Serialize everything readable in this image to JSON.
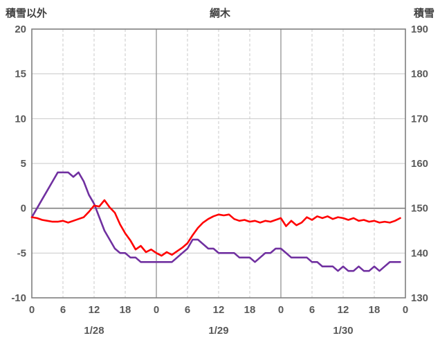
{
  "header": {
    "left_axis_title": "積雪以外",
    "title": "綱木",
    "right_axis_title": "積雪"
  },
  "chart_data": {
    "type": "line",
    "title": "綱木",
    "left_axis": {
      "title": "積雪以外",
      "min": -10,
      "max": 20,
      "ticks": [
        20,
        15,
        10,
        5,
        0,
        -5,
        -10
      ]
    },
    "right_axis": {
      "title": "積雪",
      "min": 130,
      "max": 190,
      "ticks": [
        190,
        180,
        170,
        160,
        150,
        140,
        130
      ]
    },
    "x_axis": {
      "hours_span": 72,
      "tick_hours": [
        0,
        6,
        12,
        18,
        24,
        30,
        36,
        42,
        48,
        54,
        60,
        66,
        72
      ],
      "tick_labels": [
        "0",
        "6",
        "12",
        "18",
        "0",
        "6",
        "12",
        "18",
        "0",
        "6",
        "12",
        "18",
        "0"
      ],
      "day_labels": [
        {
          "label": "1/28",
          "hour": 12
        },
        {
          "label": "1/29",
          "hour": 36
        },
        {
          "label": "1/30",
          "hour": 60
        }
      ],
      "day_boundary_hours": [
        24,
        48
      ]
    },
    "grid": true,
    "legend": "none",
    "x_hours": [
      0,
      1,
      2,
      3,
      4,
      5,
      6,
      7,
      8,
      9,
      10,
      11,
      12,
      13,
      14,
      15,
      16,
      17,
      18,
      19,
      20,
      21,
      22,
      23,
      24,
      25,
      26,
      27,
      28,
      29,
      30,
      31,
      32,
      33,
      34,
      35,
      36,
      37,
      38,
      39,
      40,
      41,
      42,
      43,
      44,
      45,
      46,
      47,
      48,
      49,
      50,
      51,
      52,
      53,
      54,
      55,
      56,
      57,
      58,
      59,
      60,
      61,
      62,
      63,
      64,
      65,
      66,
      67,
      68,
      69,
      70,
      71
    ],
    "series": [
      {
        "name": "積雪",
        "axis": "right",
        "color": "#7030A0",
        "values": [
          148,
          150,
          152,
          154,
          156,
          158,
          158,
          158,
          157,
          158,
          156,
          153,
          151,
          148,
          145,
          143,
          141,
          140,
          140,
          139,
          139,
          138,
          138,
          138,
          138,
          138,
          138,
          138,
          139,
          140,
          141,
          143,
          143,
          142,
          141,
          141,
          140,
          140,
          140,
          140,
          139,
          139,
          139,
          138,
          139,
          140,
          140,
          141,
          141,
          140,
          139,
          139,
          139,
          139,
          138,
          138,
          137,
          137,
          137,
          136,
          137,
          136,
          136,
          137,
          136,
          136,
          137,
          136,
          137,
          138,
          138,
          138
        ]
      },
      {
        "name": "積雪以外",
        "axis": "left",
        "color": "#FF0000",
        "values": [
          -1.0,
          -1.1,
          -1.3,
          -1.4,
          -1.5,
          -1.5,
          -1.4,
          -1.6,
          -1.4,
          -1.2,
          -1.0,
          -0.4,
          0.3,
          0.2,
          0.9,
          0.1,
          -0.5,
          -1.8,
          -2.8,
          -3.6,
          -4.6,
          -4.2,
          -4.9,
          -4.6,
          -5.0,
          -5.3,
          -4.9,
          -5.2,
          -4.8,
          -4.4,
          -3.9,
          -3.0,
          -2.2,
          -1.6,
          -1.2,
          -0.9,
          -0.7,
          -0.8,
          -0.7,
          -1.2,
          -1.4,
          -1.3,
          -1.5,
          -1.4,
          -1.6,
          -1.4,
          -1.5,
          -1.3,
          -1.1,
          -2.0,
          -1.4,
          -1.9,
          -1.6,
          -1.0,
          -1.3,
          -0.9,
          -1.1,
          -0.9,
          -1.2,
          -1.0,
          -1.1,
          -1.3,
          -1.1,
          -1.4,
          -1.3,
          -1.5,
          -1.4,
          -1.6,
          -1.5,
          -1.6,
          -1.4,
          -1.1
        ]
      }
    ],
    "style": {
      "grid_line": "#c9c9c9",
      "zero_line": "#7f7f7f",
      "day_line": "#9a9a9a",
      "border": "#7f7f7f",
      "tick_text": "#595959"
    }
  }
}
